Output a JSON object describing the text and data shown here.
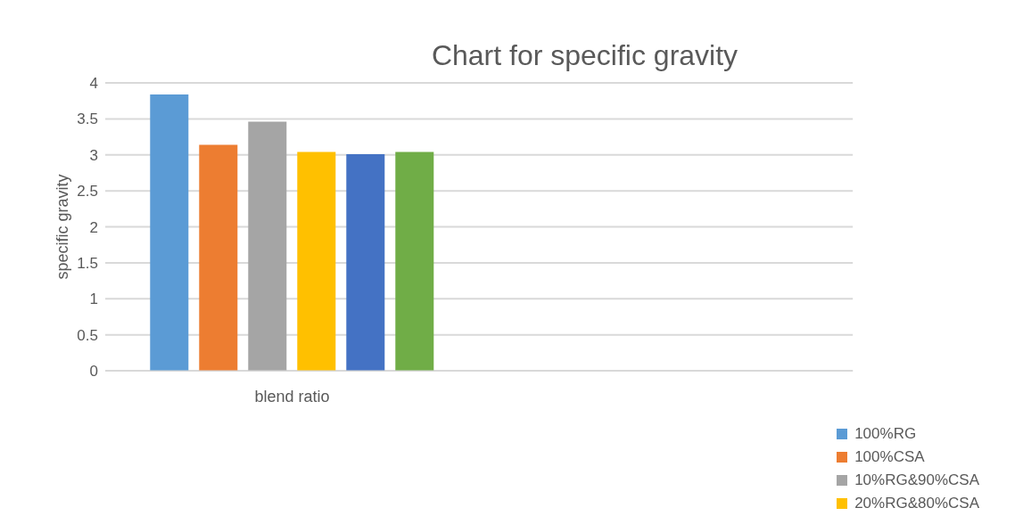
{
  "chart_data": {
    "type": "bar",
    "title": "Chart for specific gravity",
    "ylabel": "specific gravity",
    "categories": [
      "blend ratio",
      null
    ],
    "series": [
      {
        "name": "100%RG",
        "color": "#5b9bd5",
        "values": [
          3.84,
          null
        ]
      },
      {
        "name": "100%CSA",
        "color": "#ed7d31",
        "values": [
          3.14,
          null
        ]
      },
      {
        "name": "10%RG&90%CSA",
        "color": "#a5a5a5",
        "values": [
          3.46,
          null
        ]
      },
      {
        "name": "20%RG&80%CSA",
        "color": "#ffc000",
        "values": [
          3.04,
          null
        ]
      },
      {
        "color": "#4472c4",
        "values": [
          3.01,
          null
        ]
      },
      {
        "color": "#70ad47",
        "values": [
          3.04,
          null
        ]
      }
    ],
    "ylim": [
      0,
      4
    ],
    "yticks": [
      0,
      0.5,
      1,
      1.5,
      2,
      2.5,
      3,
      3.5,
      4
    ],
    "grid": "y",
    "legend": "bottom right"
  }
}
